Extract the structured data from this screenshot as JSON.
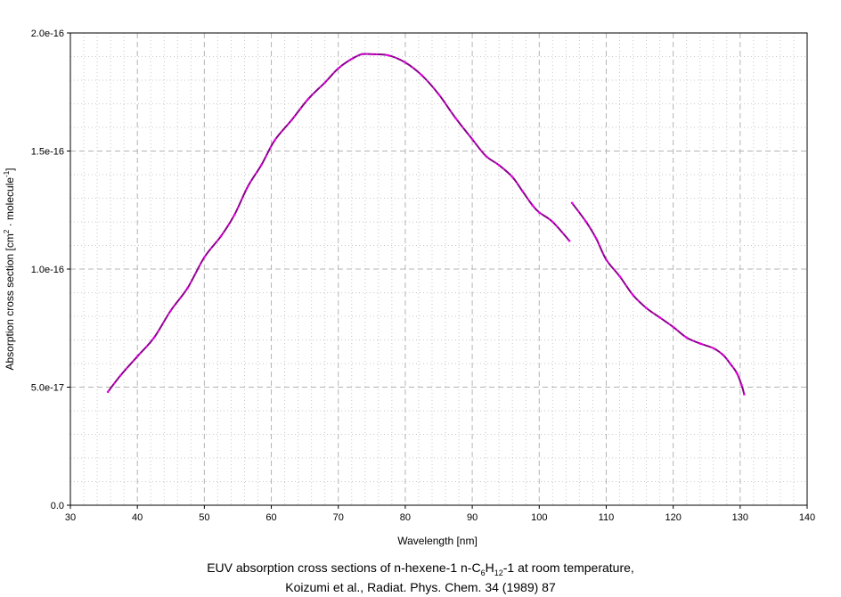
{
  "chart_data": {
    "type": "line",
    "xlabel": "Wavelength [nm]",
    "ylabel_parts": [
      "Absorption cross section [cm",
      "2",
      " · molecule",
      "-1",
      "]"
    ],
    "xlim": [
      30,
      140
    ],
    "ylim": [
      0,
      2e-16
    ],
    "xticks": [
      30,
      40,
      50,
      60,
      70,
      80,
      90,
      100,
      110,
      120,
      130,
      140
    ],
    "xtick_labels": [
      "30",
      "40",
      "50",
      "60",
      "70",
      "80",
      "90",
      "100",
      "110",
      "120",
      "130",
      "140"
    ],
    "yticks": [
      0,
      5e-17,
      1e-16,
      1.5e-16,
      2e-16
    ],
    "ytick_labels": [
      "0.0",
      "5.0e-17",
      "1.0e-16",
      "1.5e-16",
      "2.0e-16"
    ],
    "grid": true,
    "line_color": "#8b008b",
    "point_color": "#ee00ee",
    "series": [
      {
        "x": [
          35.6,
          37.5,
          40,
          42.5,
          45,
          47.5,
          50,
          52.5,
          54.5,
          56.5,
          58.5,
          60.5,
          63,
          65.5,
          68,
          70,
          72,
          73.5,
          75,
          77.5,
          80,
          82.5,
          85,
          87.5,
          90,
          92,
          94,
          96,
          97.5,
          99,
          100,
          102,
          104.5
        ],
        "y": [
          4.8e-17,
          5.5e-17,
          6.3e-17,
          7.1e-17,
          8.25e-17,
          9.2e-17,
          1.05e-16,
          1.14e-16,
          1.23e-16,
          1.35e-16,
          1.44e-16,
          1.545e-16,
          1.63e-16,
          1.72e-16,
          1.79e-16,
          1.85e-16,
          1.89e-16,
          1.91e-16,
          1.91e-16,
          1.905e-16,
          1.875e-16,
          1.82e-16,
          1.74e-16,
          1.64e-16,
          1.55e-16,
          1.48e-16,
          1.44e-16,
          1.39e-16,
          1.33e-16,
          1.27e-16,
          1.24e-16,
          1.2e-16,
          1.12e-16
        ]
      },
      {
        "x": [
          104.9,
          107,
          108.5,
          110,
          112,
          114,
          116,
          118,
          120,
          122,
          124,
          126,
          127.5,
          128.5,
          129.5,
          130.2,
          130.6
        ],
        "y": [
          1.28e-16,
          1.2e-16,
          1.13e-16,
          1.04e-16,
          9.7e-17,
          8.9e-17,
          8.35e-17,
          7.95e-17,
          7.55e-17,
          7.1e-17,
          6.85e-17,
          6.65e-17,
          6.35e-17,
          6e-17,
          5.6e-17,
          5.1e-17,
          4.7e-17
        ]
      }
    ]
  },
  "caption": {
    "line1_a": "EUV absorption cross sections of n-hexene-1 n-C",
    "line1_sub1": "6",
    "line1_b": "H",
    "line1_sub2": "12",
    "line1_c": "-1 at room temperature,",
    "line2": "Koizumi et al., Radiat. Phys. Chem. 34 (1989) 87"
  }
}
